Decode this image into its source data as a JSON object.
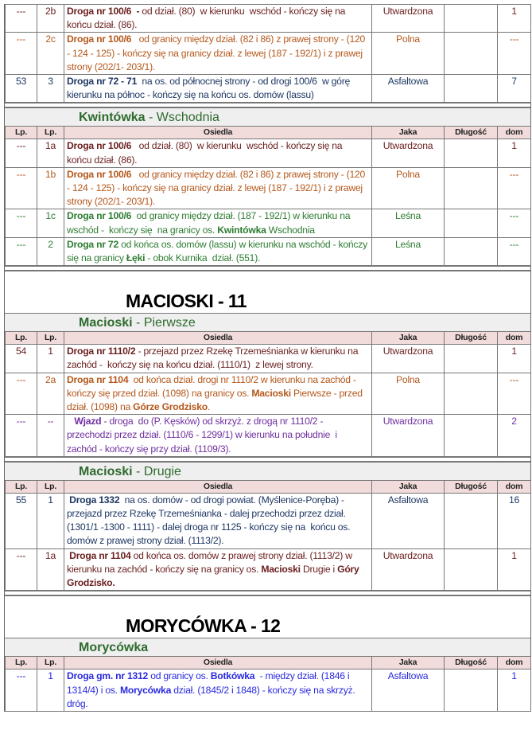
{
  "headers": [
    "Lp.",
    "Lp.",
    "Osiedla",
    "Jaka",
    "Długość",
    "dom"
  ],
  "colors": {
    "dark_red": "#6b1f1f",
    "brown": "#b5581c",
    "navy": "#1f3864",
    "green": "#2e7d32",
    "purple": "#7030a0",
    "blue": "#2a2ae0",
    "title_green": "#2e6b2e",
    "header_bg": "#f2dcdb",
    "subtitle_bg": "#efefef"
  },
  "sections": [
    {
      "type": "rows",
      "rows": [
        {
          "lp": "---",
          "lp2": "2b",
          "color": "dark_red",
          "desc": [
            {
              "t": "Droga nr 100/6  -",
              "b": true
            },
            {
              "t": " od dział. (80)  w kierunku  wschód - kończy się na końcu dział. (86)."
            }
          ],
          "jaka": "Utwardzona",
          "dlugosc": "",
          "dom": "1"
        },
        {
          "lp": "---",
          "lp2": "2c",
          "color": "brown",
          "desc": [
            {
              "t": "Droga nr 100/6",
              "b": true
            },
            {
              "t": "   od granicy między dział. (82 i 86) z prawej strony - (120 - 124 - 125) - kończy się na granicy dział. z lewej (187 - 192/1) i z prawej strony (202/1- 203/1)."
            }
          ],
          "jaka": "Polna",
          "dlugosc": "",
          "dom": "---"
        },
        {
          "lp": "53",
          "lp2": "3",
          "color": "navy",
          "desc": [
            {
              "t": "Droga nr 72 - 71",
              "b": true
            },
            {
              "t": "  na os. od północnej strony - od drogi 100/6  w górę kierunku na północ - kończy się na końcu os. domów (lassu)"
            }
          ],
          "jaka": "Asfaltowa",
          "dlugosc": "",
          "dom": "7"
        }
      ]
    },
    {
      "type": "sep"
    },
    {
      "type": "sub",
      "title_bold": "Kwintówka",
      "title_rest": " - Wschodnia",
      "rows": [
        {
          "lp": "---",
          "lp2": "1a",
          "color": "dark_red",
          "desc": [
            {
              "t": "Droga nr 100/6",
              "b": true
            },
            {
              "t": "   od dział. (80)  w kierunku  wschód - kończy się na końcu dział. (86)."
            }
          ],
          "jaka": "Utwardzona",
          "dlugosc": "",
          "dom": "1"
        },
        {
          "lp": "---",
          "lp2": "1b",
          "color": "brown",
          "desc": [
            {
              "t": "Droga nr 100/6",
              "b": true
            },
            {
              "t": "   od granicy między dział. (82 i 86) z prawej strony - (120 - 124 - 125) - kończy się na granicy dział. z lewej (187 - 192/1) i z prawej strony (202/1- 203/1)."
            }
          ],
          "jaka": "Polna",
          "dlugosc": "",
          "dom": "---"
        },
        {
          "lp": "---",
          "lp2": "1c",
          "color": "green",
          "desc": [
            {
              "t": "Droga nr 100/6",
              "b": true
            },
            {
              "t": "  od granicy między dział. (187 - 192/1) w kierunku na wschód -  kończy się  na granicy os. "
            },
            {
              "t": "Kwintówka",
              "b": true
            },
            {
              "t": " Wschodnia"
            }
          ],
          "jaka": "Leśna",
          "dlugosc": "",
          "dom": "---"
        },
        {
          "lp": "---",
          "lp2": "2",
          "color": "green",
          "desc": [
            {
              "t": "Droga nr 72",
              "b": true
            },
            {
              "t": " od końca os. domów (lassu) w kierunku na wschód - kończy się na granicy "
            },
            {
              "t": "Łęki",
              "b": true
            },
            {
              "t": " - obok Kurnika  dział. (551)."
            }
          ],
          "jaka": "Leśna",
          "dlugosc": "",
          "dom": "---"
        }
      ]
    },
    {
      "type": "sep"
    },
    {
      "type": "heading",
      "text": "MACIOSKI - 11"
    },
    {
      "type": "sub",
      "title_bold": "Macioski",
      "title_rest": " - Pierwsze",
      "rows": [
        {
          "lp": "54",
          "lp2": "1",
          "color": "dark_red",
          "desc": [
            {
              "t": "Droga nr 1110/2",
              "b": true
            },
            {
              "t": " - przejazd przez Rzekę Trzemeśnianka w kierunku na zachód -  kończy się na końcu dział. (1110/1)  z lewej strony."
            }
          ],
          "jaka": "Utwardzona",
          "dlugosc": "",
          "dom": "1"
        },
        {
          "lp": "---",
          "lp2": "2a",
          "color": "brown",
          "desc": [
            {
              "t": "Droga nr 1104",
              "b": true
            },
            {
              "t": "  od końca dział. drogi nr 1110/2 w kierunku na zachód - kończy się przed dział. (1098) na granicy os. "
            },
            {
              "t": "Macioski",
              "b": true
            },
            {
              "t": " Pierwsze - przed dział. (1098) na "
            },
            {
              "t": "Górze Grodzisko",
              "b": true
            },
            {
              "t": "."
            }
          ],
          "jaka": "Polna",
          "dlugosc": "",
          "dom": "---"
        },
        {
          "lp": "---",
          "lp2": "--",
          "color": "purple",
          "desc": [
            {
              "t": "   "
            },
            {
              "t": "Wjazd",
              "b": true
            },
            {
              "t": " - droga  do (P. Kęsków) od skrzyż. z drogą nr 1110/2 - przechodzi przez dział. (1110/6 - 1299/1) w kierunku na południe  i zachód - kończy się przy dział. (1109/3)."
            }
          ],
          "jaka": "Utwardzona",
          "dlugosc": "",
          "dom": "2"
        }
      ]
    },
    {
      "type": "sep"
    },
    {
      "type": "sub",
      "title_bold": "Macioski",
      "title_rest": "  - Drugie",
      "rows": [
        {
          "lp": "55",
          "lp2": "1",
          "color": "navy",
          "desc": [
            {
              "t": " "
            },
            {
              "t": "Droga 1332",
              "b": true
            },
            {
              "t": "  na os. domów - od drogi powiat. (Myślenice-Poręba) - przejazd przez Rzekę Trzemeśnianka - dalej przechodzi przez dział. (1301/1 -1300 - 1111) - dalej droga nr 1125 - kończy się na  końcu os. domów z prawej strony dział. (1113/2)."
            }
          ],
          "jaka": "Asfaltowa",
          "dlugosc": "",
          "dom": "16"
        },
        {
          "lp": "---",
          "lp2": "1a",
          "color": "dark_red",
          "desc": [
            {
              "t": " "
            },
            {
              "t": "Droga nr 1104",
              "b": true
            },
            {
              "t": " od końca os. domów z prawej strony dział. (1113/2) w kierunku na zachód - kończy się na granicy os. "
            },
            {
              "t": "Macioski",
              "b": true
            },
            {
              "t": " Drugie i "
            },
            {
              "t": "Góry Grodzisko.",
              "b": true
            }
          ],
          "jaka": "Utwardzona",
          "dlugosc": "",
          "dom": "1"
        }
      ]
    },
    {
      "type": "sep"
    },
    {
      "type": "heading",
      "text": "MORYCÓWKA - 12"
    },
    {
      "type": "sub",
      "title_bold": "Morycówka",
      "title_rest": "",
      "rows": [
        {
          "lp": "---",
          "lp2": "1",
          "color": "blue",
          "desc": [
            {
              "t": "Droga gm. nr 1312",
              "b": true
            },
            {
              "t": " od granicy os. "
            },
            {
              "t": "Botkówka",
              "b": true
            },
            {
              "t": "  - między dział. (1846 i 1314/4) i os. "
            },
            {
              "t": "Morycówka",
              "b": true
            },
            {
              "t": " dział. (1845/2 i 1848) - kończy się na skrzyż. dróg."
            }
          ],
          "jaka": "Asfaltowa",
          "dlugosc": "",
          "dom": "1"
        }
      ]
    }
  ]
}
